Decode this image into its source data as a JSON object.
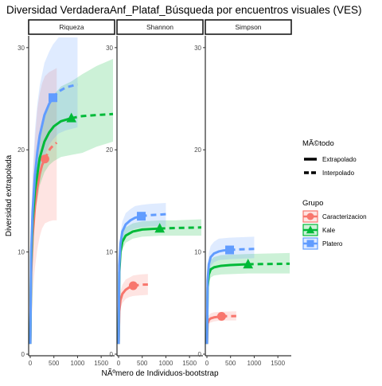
{
  "chart_data": {
    "type": "line",
    "title": "Diversidad VerdaderaAnf_Plataf_Búsqueda por encuentros visuales (VES)",
    "xlabel": "NÃºmero de Individuos-bootstrap",
    "ylabel": "Diversidad extrapolada",
    "facets": [
      "Riqueza",
      "Shannon",
      "Simpson"
    ],
    "xlim": [
      0,
      1750
    ],
    "ylim": [
      0,
      31
    ],
    "x_ticks": [
      0,
      500,
      1000,
      1500
    ],
    "x_tick_labels": [
      "0",
      "500",
      "1000",
      "1500"
    ],
    "y_ticks": [
      0,
      10,
      20,
      30
    ],
    "y_tick_labels": [
      "0",
      "10",
      "20",
      "30"
    ],
    "grid": false,
    "legend_position": "right",
    "legend_method": {
      "title": "MÃ©todo",
      "entries": [
        {
          "label": "Extrapolado",
          "linestyle": "solid"
        },
        {
          "label": "Interpolado",
          "linestyle": "dashed"
        }
      ]
    },
    "legend_group": {
      "title": "Grupo",
      "entries": [
        {
          "label": "Caracterizacion",
          "color": "#F8766D",
          "shape": "circle"
        },
        {
          "label": "Kale",
          "color": "#00BA38",
          "shape": "triangle"
        },
        {
          "label": "Platero",
          "color": "#619CFF",
          "shape": "square"
        }
      ]
    },
    "panels": [
      {
        "facet": "Riqueza",
        "series": [
          {
            "name": "Caracterizacion",
            "observed": {
              "x": 310,
              "y": 19.1
            },
            "extrap_end": 560,
            "line": [
              [
                1,
                1
              ],
              [
                20,
                8
              ],
              [
                50,
                11.5
              ],
              [
                100,
                14.5
              ],
              [
                150,
                16.3
              ],
              [
                200,
                17.6
              ],
              [
                250,
                18.5
              ],
              [
                310,
                19.1
              ],
              [
                360,
                19.6
              ],
              [
                420,
                20.1
              ],
              [
                480,
                20.4
              ],
              [
                560,
                20.7
              ]
            ],
            "ci": [
              [
                1,
                1,
                1
              ],
              [
                20,
                4,
                12
              ],
              [
                50,
                6,
                17
              ],
              [
                100,
                8.5,
                21
              ],
              [
                150,
                10.3,
                24
              ],
              [
                200,
                11.5,
                25.5
              ],
              [
                250,
                12.3,
                26.5
              ],
              [
                310,
                12.8,
                27.2
              ],
              [
                400,
                13,
                27.6
              ],
              [
                480,
                13.1,
                27.8
              ],
              [
                560,
                13.1,
                28
              ]
            ]
          },
          {
            "name": "Kale",
            "observed": {
              "x": 870,
              "y": 23.1
            },
            "extrap_end": 1750,
            "line": [
              [
                1,
                1
              ],
              [
                20,
                9
              ],
              [
                50,
                13
              ],
              [
                100,
                16
              ],
              [
                200,
                19.2
              ],
              [
                300,
                20.8
              ],
              [
                400,
                21.7
              ],
              [
                500,
                22.3
              ],
              [
                650,
                22.8
              ],
              [
                870,
                23.1
              ],
              [
                1100,
                23.3
              ],
              [
                1400,
                23.4
              ],
              [
                1750,
                23.5
              ]
            ],
            "ci": [
              [
                1,
                1,
                1
              ],
              [
                20,
                7,
                11
              ],
              [
                50,
                11,
                15
              ],
              [
                100,
                13.7,
                18.3
              ],
              [
                200,
                16.5,
                21.7
              ],
              [
                300,
                17.8,
                23.5
              ],
              [
                400,
                18.5,
                24.6
              ],
              [
                500,
                18.9,
                25.4
              ],
              [
                650,
                19.3,
                26.2
              ],
              [
                870,
                19.5,
                26.7
              ],
              [
                1100,
                19.7,
                27.4
              ],
              [
                1400,
                20.3,
                28.2
              ],
              [
                1750,
                20.8,
                28.9
              ]
            ]
          },
          {
            "name": "Platero",
            "observed": {
              "x": 480,
              "y": 25.1
            },
            "extrap_end": 1000,
            "line": [
              [
                1,
                1
              ],
              [
                20,
                10
              ],
              [
                50,
                14
              ],
              [
                100,
                17.5
              ],
              [
                150,
                19.8
              ],
              [
                200,
                21.4
              ],
              [
                300,
                23.4
              ],
              [
                400,
                24.5
              ],
              [
                480,
                25.1
              ],
              [
                600,
                25.7
              ],
              [
                750,
                26.1
              ],
              [
                1000,
                26.4
              ]
            ],
            "ci": [
              [
                1,
                1,
                1
              ],
              [
                20,
                7,
                13
              ],
              [
                50,
                11,
                17.5
              ],
              [
                100,
                14,
                22
              ],
              [
                150,
                16,
                24.5
              ],
              [
                200,
                17.5,
                26.3
              ],
              [
                300,
                19.3,
                28.5
              ],
              [
                400,
                20.5,
                29.6
              ],
              [
                480,
                21,
                30.3
              ],
              [
                600,
                21.6,
                31
              ],
              [
                750,
                21.9,
                31
              ],
              [
                1000,
                22.2,
                31
              ]
            ]
          }
        ]
      },
      {
        "facet": "Shannon",
        "series": [
          {
            "name": "Caracterizacion",
            "observed": {
              "x": 310,
              "y": 6.7
            },
            "extrap_end": 620,
            "line": [
              [
                1,
                1
              ],
              [
                15,
                4.2
              ],
              [
                40,
                5.3
              ],
              [
                80,
                5.9
              ],
              [
                150,
                6.3
              ],
              [
                230,
                6.55
              ],
              [
                310,
                6.7
              ],
              [
                400,
                6.75
              ],
              [
                500,
                6.8
              ],
              [
                620,
                6.82
              ]
            ],
            "ci": [
              [
                1,
                1,
                1
              ],
              [
                15,
                3.5,
                5
              ],
              [
                40,
                4.5,
                6.1
              ],
              [
                80,
                5,
                6.8
              ],
              [
                150,
                5.4,
                7.3
              ],
              [
                230,
                5.6,
                7.5
              ],
              [
                310,
                5.7,
                7.7
              ],
              [
                450,
                5.75,
                7.8
              ],
              [
                620,
                5.8,
                7.85
              ]
            ]
          },
          {
            "name": "Kale",
            "observed": {
              "x": 870,
              "y": 12.3
            },
            "extrap_end": 1750,
            "line": [
              [
                1,
                1
              ],
              [
                15,
                8
              ],
              [
                40,
                10
              ],
              [
                80,
                11
              ],
              [
                150,
                11.6
              ],
              [
                300,
                12
              ],
              [
                500,
                12.2
              ],
              [
                870,
                12.3
              ],
              [
                1200,
                12.35
              ],
              [
                1750,
                12.4
              ]
            ],
            "ci": [
              [
                1,
                1,
                1
              ],
              [
                15,
                7,
                9
              ],
              [
                40,
                9.2,
                10.8
              ],
              [
                80,
                10.2,
                11.8
              ],
              [
                150,
                10.9,
                12.4
              ],
              [
                300,
                11.3,
                12.8
              ],
              [
                500,
                11.5,
                13
              ],
              [
                870,
                11.6,
                13.1
              ],
              [
                1200,
                11.6,
                13.1
              ],
              [
                1750,
                11.6,
                13.2
              ]
            ]
          },
          {
            "name": "Platero",
            "observed": {
              "x": 480,
              "y": 13.5
            },
            "extrap_end": 1000,
            "line": [
              [
                1,
                1
              ],
              [
                15,
                8.7
              ],
              [
                40,
                10.8
              ],
              [
                80,
                12
              ],
              [
                150,
                12.7
              ],
              [
                250,
                13.1
              ],
              [
                350,
                13.35
              ],
              [
                480,
                13.5
              ],
              [
                650,
                13.6
              ],
              [
                850,
                13.65
              ],
              [
                1000,
                13.7
              ]
            ],
            "ci": [
              [
                1,
                1,
                1
              ],
              [
                15,
                7.7,
                9.7
              ],
              [
                40,
                9.8,
                11.8
              ],
              [
                80,
                11,
                13
              ],
              [
                150,
                11.7,
                13.8
              ],
              [
                250,
                12.1,
                14.2
              ],
              [
                350,
                12.3,
                14.5
              ],
              [
                480,
                12.4,
                14.6
              ],
              [
                650,
                12.5,
                14.7
              ],
              [
                1000,
                12.5,
                14.8
              ]
            ]
          }
        ]
      },
      {
        "facet": "Simpson",
        "series": [
          {
            "name": "Caracterizacion",
            "observed": {
              "x": 310,
              "y": 3.7
            },
            "extrap_end": 620,
            "line": [
              [
                1,
                1
              ],
              [
                15,
                3
              ],
              [
                40,
                3.35
              ],
              [
                80,
                3.5
              ],
              [
                150,
                3.6
              ],
              [
                230,
                3.65
              ],
              [
                310,
                3.7
              ],
              [
                450,
                3.72
              ],
              [
                620,
                3.73
              ]
            ],
            "ci": [
              [
                1,
                1,
                1
              ],
              [
                15,
                2.7,
                3.3
              ],
              [
                40,
                3,
                3.8
              ],
              [
                80,
                3.1,
                4
              ],
              [
                150,
                3.2,
                4.1
              ],
              [
                310,
                3.3,
                4.15
              ],
              [
                620,
                3.3,
                4.2
              ]
            ]
          },
          {
            "name": "Kale",
            "observed": {
              "x": 870,
              "y": 8.8
            },
            "extrap_end": 1750,
            "line": [
              [
                1,
                1
              ],
              [
                15,
                6.5
              ],
              [
                40,
                7.8
              ],
              [
                80,
                8.3
              ],
              [
                150,
                8.5
              ],
              [
                300,
                8.65
              ],
              [
                500,
                8.72
              ],
              [
                870,
                8.8
              ],
              [
                1200,
                8.82
              ],
              [
                1750,
                8.85
              ]
            ],
            "ci": [
              [
                1,
                1,
                1
              ],
              [
                15,
                5.8,
                7.2
              ],
              [
                40,
                7,
                8.7
              ],
              [
                80,
                7.5,
                9.2
              ],
              [
                150,
                7.7,
                9.5
              ],
              [
                300,
                7.8,
                9.7
              ],
              [
                870,
                7.9,
                9.8
              ],
              [
                1750,
                7.9,
                9.9
              ]
            ]
          },
          {
            "name": "Platero",
            "observed": {
              "x": 480,
              "y": 10.2
            },
            "extrap_end": 1000,
            "line": [
              [
                1,
                1
              ],
              [
                15,
                7.2
              ],
              [
                40,
                8.8
              ],
              [
                80,
                9.5
              ],
              [
                150,
                9.85
              ],
              [
                250,
                10.05
              ],
              [
                350,
                10.15
              ],
              [
                480,
                10.2
              ],
              [
                650,
                10.25
              ],
              [
                850,
                10.28
              ],
              [
                1000,
                10.3
              ]
            ],
            "ci": [
              [
                1,
                1,
                1
              ],
              [
                15,
                6.3,
                8.2
              ],
              [
                40,
                7.9,
                9.9
              ],
              [
                80,
                8.6,
                10.6
              ],
              [
                150,
                9,
                11
              ],
              [
                250,
                9.2,
                11.3
              ],
              [
                480,
                9.3,
                11.4
              ],
              [
                1000,
                9.4,
                11.5
              ]
            ]
          }
        ]
      }
    ]
  }
}
